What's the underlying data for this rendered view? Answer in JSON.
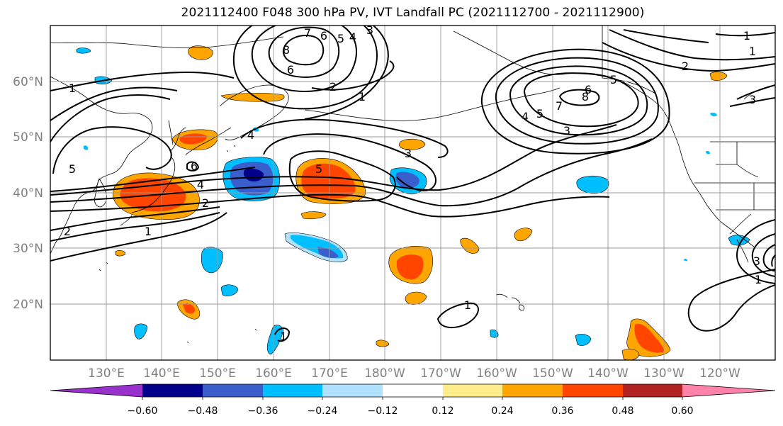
{
  "title": "2021112400 F048 300 hPa PV, IVT Landfall PC (2021112700 - 2021112900)",
  "lat_labels": [
    "60°N",
    "50°N",
    "40°N",
    "30°N",
    "20°N"
  ],
  "lon_labels": [
    "130°E",
    "140°E",
    "150°E",
    "160°E",
    "170°E",
    "180°W",
    "170°W",
    "160°W",
    "150°W",
    "140°W",
    "130°W",
    "120°W"
  ],
  "contour_labels": [
    "1",
    "5",
    "6",
    "4",
    "2",
    "1",
    "2",
    "5",
    "4",
    "3",
    "7",
    "6",
    "8",
    "6",
    "5",
    "4",
    "3",
    "2",
    "1",
    "3",
    "5",
    "8",
    "7",
    "5",
    "4",
    "3",
    "6",
    "2",
    "1",
    "1",
    "3",
    "1",
    "1",
    "1"
  ],
  "colorbar": {
    "colors": [
      "#9932cc",
      "#00008b",
      "#3a5fcd",
      "#00bfff",
      "#b0e2ff",
      "#ffffff",
      "#ffec8b",
      "#ffa500",
      "#ff4500",
      "#b22222",
      "#ff82ab"
    ],
    "tick_labels": [
      "−0.60",
      "−0.48",
      "−0.36",
      "−0.24",
      "−0.12",
      "0.12",
      "0.24",
      "0.36",
      "0.48",
      "0.60"
    ]
  }
}
